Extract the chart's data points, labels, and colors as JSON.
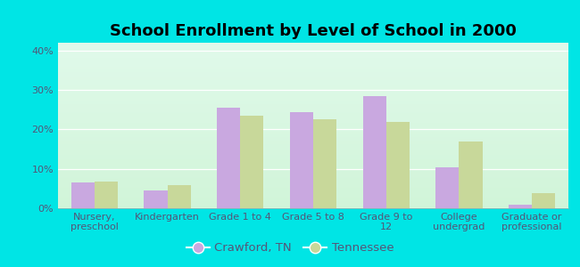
{
  "title": "School Enrollment by Level of School in 2000",
  "categories": [
    "Nursery,\npreschool",
    "Kindergarten",
    "Grade 1 to 4",
    "Grade 5 to 8",
    "Grade 9 to\n12",
    "College\nundergrad",
    "Graduate or\nprofessional"
  ],
  "crawford": [
    6.5,
    4.5,
    25.5,
    24.5,
    28.5,
    10.5,
    1.0
  ],
  "tennessee": [
    6.8,
    5.8,
    23.5,
    22.5,
    21.8,
    17.0,
    3.8
  ],
  "crawford_color": "#c9a8e0",
  "tennessee_color": "#c8d89a",
  "background_color": "#00e5e5",
  "ylim": [
    0,
    42
  ],
  "yticks": [
    0,
    10,
    20,
    30,
    40
  ],
  "ytick_labels": [
    "0%",
    "10%",
    "20%",
    "30%",
    "40%"
  ],
  "legend_crawford": "Crawford, TN",
  "legend_tennessee": "Tennessee",
  "bar_width": 0.32,
  "title_fontsize": 13,
  "tick_fontsize": 8,
  "legend_fontsize": 9.5,
  "grid_color": "#dddddd",
  "text_color": "#555577"
}
